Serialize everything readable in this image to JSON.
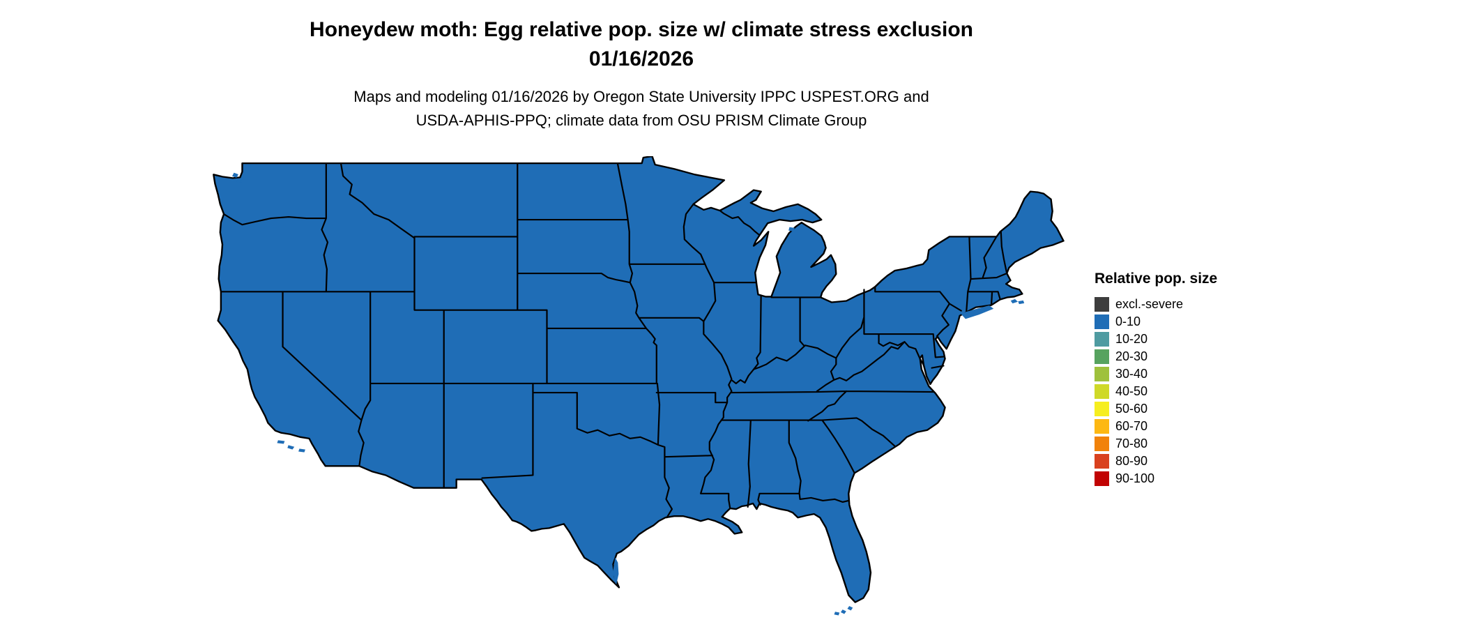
{
  "title": {
    "line1": "Honeydew moth: Egg relative pop. size w/ climate stress exclusion",
    "line2": "01/16/2026"
  },
  "subtitle": {
    "line1": "Maps and modeling 01/16/2026 by Oregon State University IPPC USPEST.ORG and",
    "line2": "USDA-APHIS-PPQ; climate data from OSU PRISM Climate Group"
  },
  "legend": {
    "title": "Relative pop. size",
    "items": [
      {
        "label": "excl.-severe",
        "color": "#3d3d3d"
      },
      {
        "label": "0-10",
        "color": "#1f6db6"
      },
      {
        "label": "10-20",
        "color": "#4f9ba1"
      },
      {
        "label": "20-30",
        "color": "#57a35f"
      },
      {
        "label": "30-40",
        "color": "#9fc13c"
      },
      {
        "label": "40-50",
        "color": "#cfd928"
      },
      {
        "label": "50-60",
        "color": "#f6ee1f"
      },
      {
        "label": "60-70",
        "color": "#fdb813"
      },
      {
        "label": "70-80",
        "color": "#f1820a"
      },
      {
        "label": "80-90",
        "color": "#d9411e"
      },
      {
        "label": "90-100",
        "color": "#c10303"
      }
    ]
  },
  "map": {
    "description": "Continental United States choropleth, all states in 0-10 category",
    "fill_color": "#1f6db6",
    "border_color": "#000000",
    "uniform_value_category": "0-10"
  }
}
